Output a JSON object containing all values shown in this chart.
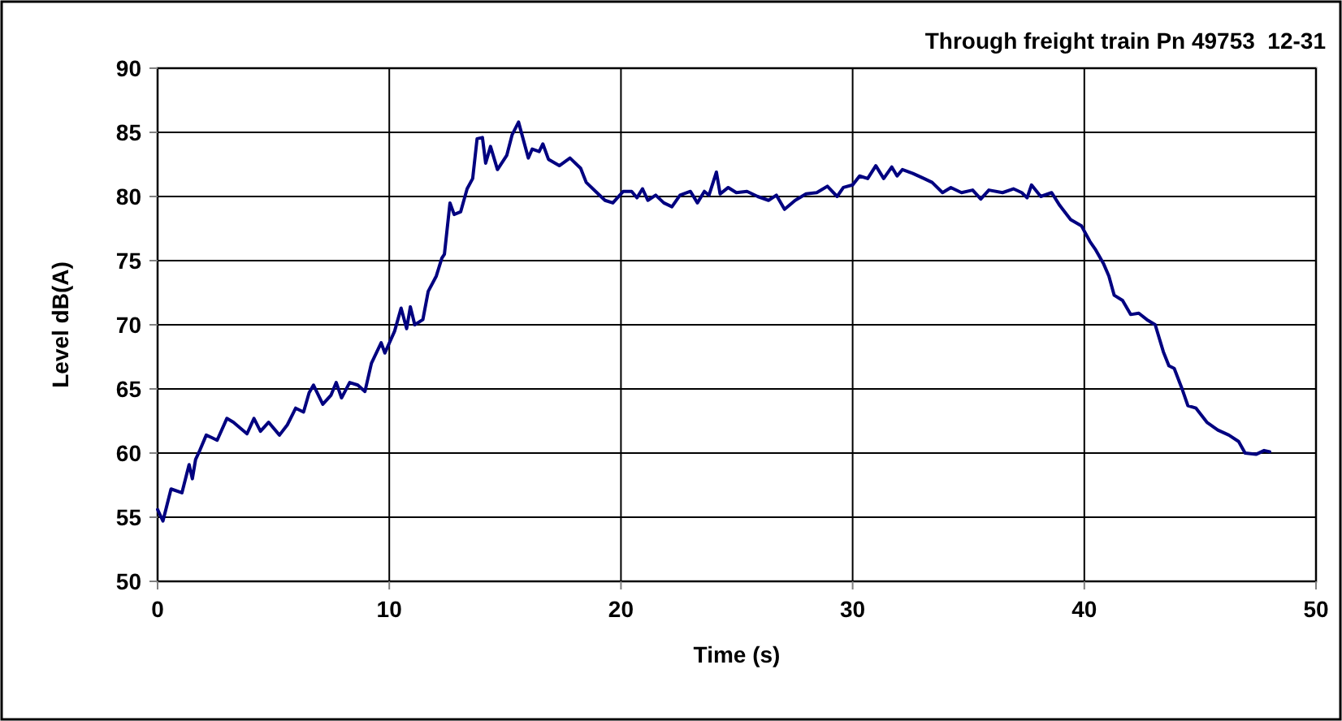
{
  "chart_data": {
    "type": "line",
    "title": "Through freight train Pn 49753  12-31",
    "xlabel": "Time (s)",
    "ylabel": "Level dB(A)",
    "xlim": [
      0,
      50
    ],
    "xticks": [
      0,
      10,
      20,
      30,
      40,
      50
    ],
    "ylim": [
      50,
      90
    ],
    "yticks": [
      50,
      55,
      60,
      65,
      70,
      75,
      80,
      85,
      90
    ],
    "grid": true,
    "marker": "none",
    "line_style": "solid",
    "series": [
      {
        "color": "#000080",
        "x": [
          0,
          0.23,
          0.58,
          1.05,
          1.36,
          1.5,
          1.64,
          1.82,
          2.1,
          2.34,
          2.57,
          2.99,
          3.27,
          3.6,
          3.86,
          4.16,
          4.44,
          4.79,
          5.26,
          5.6,
          5.96,
          6.3,
          6.54,
          6.73,
          7.13,
          7.48,
          7.71,
          7.94,
          8.29,
          8.64,
          8.95,
          9.23,
          9.65,
          9.81,
          10.23,
          10.51,
          10.75,
          10.91,
          11.1,
          11.45,
          11.68,
          12.03,
          12.27,
          12.38,
          12.62,
          12.8,
          13.08,
          13.36,
          13.6,
          13.79,
          14.02,
          14.16,
          14.37,
          14.67,
          15.07,
          15.3,
          15.58,
          16.0,
          16.17,
          16.47,
          16.63,
          16.87,
          17.34,
          17.8,
          18.26,
          18.5,
          18.96,
          19.31,
          19.65,
          20.1,
          20.46,
          20.69,
          20.93,
          21.16,
          21.5,
          21.85,
          22.2,
          22.55,
          23.0,
          23.3,
          23.6,
          23.8,
          24.12,
          24.28,
          24.63,
          24.98,
          25.44,
          25.9,
          26.37,
          26.71,
          27.06,
          27.52,
          27.99,
          28.45,
          28.91,
          29.33,
          29.6,
          30.0,
          30.3,
          30.65,
          31.0,
          31.34,
          31.69,
          31.92,
          32.15,
          32.6,
          33.08,
          33.43,
          33.88,
          34.24,
          34.7,
          35.18,
          35.53,
          35.88,
          36.47,
          36.94,
          37.3,
          37.53,
          37.72,
          38.12,
          38.59,
          38.94,
          39.41,
          39.88,
          40.24,
          40.47,
          40.82,
          41.06,
          41.29,
          41.65,
          42.0,
          42.35,
          42.7,
          43.06,
          43.41,
          43.65,
          43.88,
          44.24,
          44.47,
          44.82,
          45.29,
          45.76,
          46.24,
          46.66,
          46.94,
          47.41,
          47.76,
          48.0
        ],
        "values": [
          55.6,
          54.7,
          57.2,
          56.9,
          59.1,
          58.0,
          59.5,
          60.2,
          61.4,
          61.2,
          61.0,
          62.7,
          62.4,
          61.9,
          61.5,
          62.7,
          61.7,
          62.4,
          61.4,
          62.2,
          63.5,
          63.2,
          64.7,
          65.3,
          63.8,
          64.5,
          65.5,
          64.3,
          65.5,
          65.3,
          64.8,
          67.0,
          68.6,
          67.8,
          69.5,
          71.3,
          69.7,
          71.4,
          70.0,
          70.4,
          72.6,
          73.8,
          75.2,
          75.5,
          79.5,
          78.6,
          78.8,
          80.6,
          81.4,
          84.5,
          84.6,
          82.6,
          83.9,
          82.1,
          83.2,
          84.8,
          85.8,
          83.0,
          83.7,
          83.5,
          84.1,
          82.9,
          82.4,
          83.0,
          82.2,
          81.1,
          80.3,
          79.7,
          79.5,
          80.4,
          80.4,
          79.9,
          80.6,
          79.7,
          80.1,
          79.5,
          79.2,
          80.1,
          80.4,
          79.5,
          80.4,
          80.1,
          81.9,
          80.2,
          80.7,
          80.3,
          80.4,
          80.0,
          79.7,
          80.1,
          79.0,
          79.7,
          80.2,
          80.3,
          80.8,
          80.0,
          80.7,
          80.9,
          81.6,
          81.4,
          82.4,
          81.4,
          82.3,
          81.6,
          82.1,
          81.8,
          81.4,
          81.1,
          80.3,
          80.7,
          80.3,
          80.5,
          79.8,
          80.5,
          80.3,
          80.6,
          80.3,
          79.9,
          80.9,
          80.0,
          80.3,
          79.3,
          78.2,
          77.7,
          76.5,
          75.9,
          74.8,
          73.8,
          72.3,
          71.9,
          70.8,
          70.9,
          70.4,
          70.0,
          67.9,
          66.8,
          66.6,
          64.9,
          63.7,
          63.5,
          62.4,
          61.8,
          61.4,
          60.9,
          60.0,
          59.9,
          60.2,
          60.1
        ]
      }
    ]
  }
}
